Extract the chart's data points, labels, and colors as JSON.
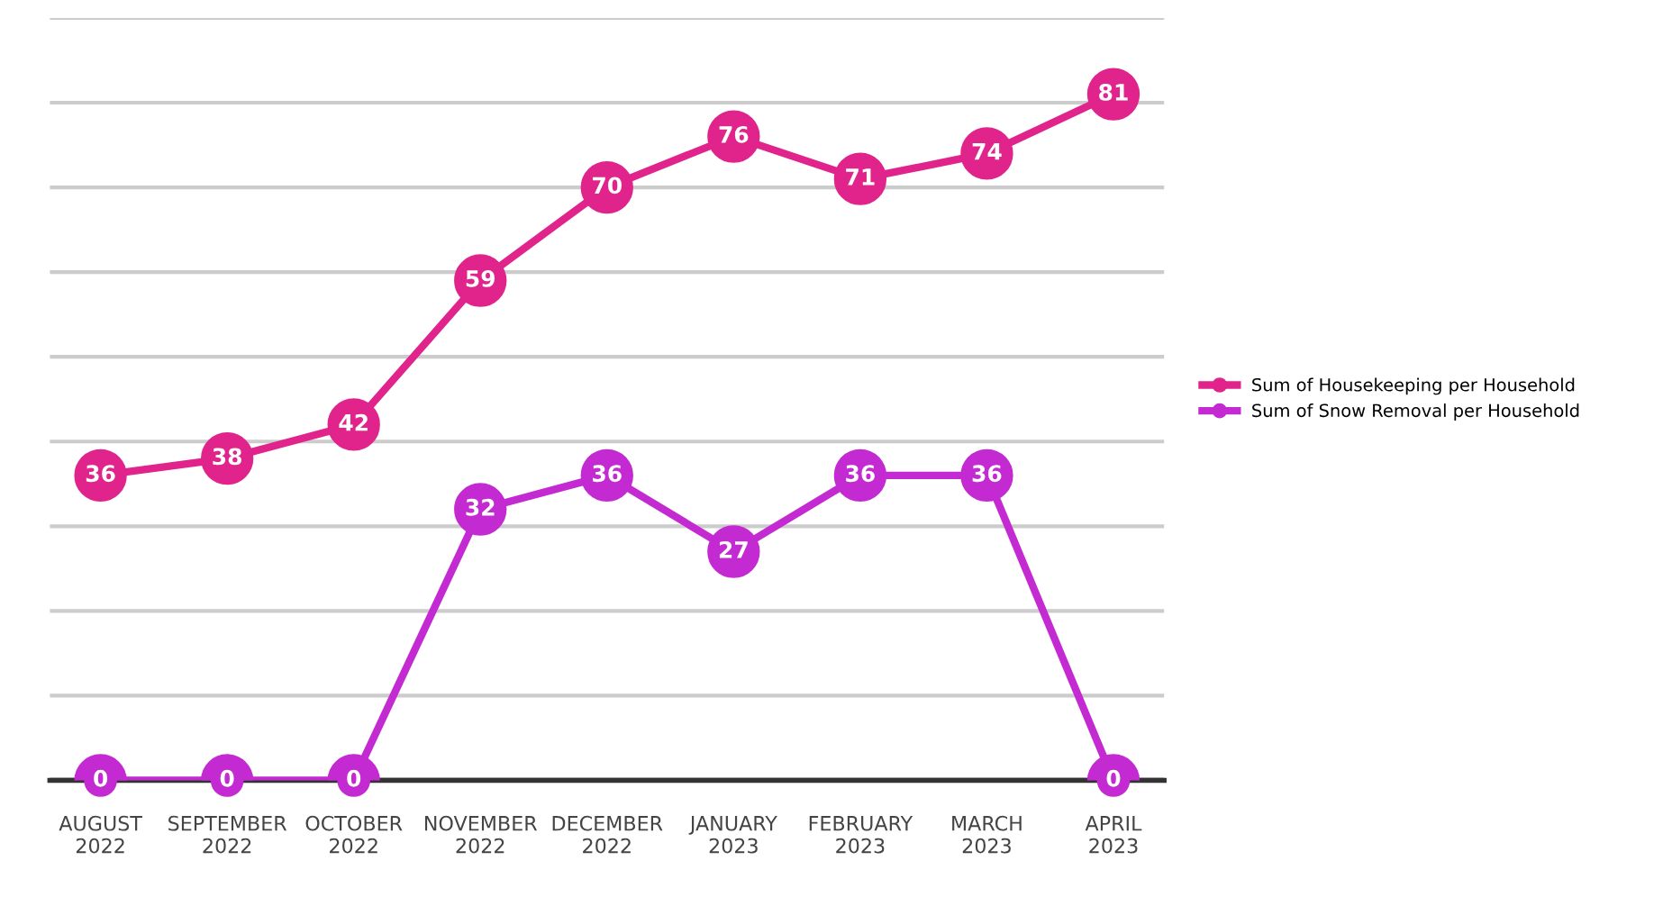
{
  "chart_data": {
    "type": "line",
    "categories": [
      "AUGUST 2022",
      "SEPTEMBER 2022",
      "OCTOBER 2022",
      "NOVEMBER 2022",
      "DECEMBER 2022",
      "JANUARY 2023",
      "FEBRUARY 2023",
      "MARCH 2023",
      "APRIL 2023"
    ],
    "series": [
      {
        "name": "Sum of Housekeeping per Household",
        "color": "#e0248c",
        "values": [
          36,
          38,
          42,
          59,
          70,
          76,
          71,
          74,
          81
        ]
      },
      {
        "name": "Sum of Snow Removal per Household",
        "color": "#c42ad2",
        "values": [
          0,
          0,
          0,
          32,
          36,
          27,
          36,
          36,
          0
        ]
      }
    ],
    "ylim": [
      0,
      90
    ],
    "yticks": [
      {
        "value": 0,
        "label": null
      },
      {
        "value": 10,
        "label": null
      },
      {
        "value": 20,
        "label": null
      },
      {
        "value": 30,
        "label": null
      },
      {
        "value": 40,
        "label": null
      },
      {
        "value": 50,
        "label": null
      },
      {
        "value": 60,
        "label": null
      },
      {
        "value": 70,
        "label": null
      },
      {
        "value": 80,
        "label": null
      },
      {
        "value": 90,
        "label": null
      }
    ],
    "grid": "y",
    "legend": "right",
    "marker": "circle",
    "line_style": "solid",
    "data_labels": true,
    "tick_labels": "x"
  }
}
